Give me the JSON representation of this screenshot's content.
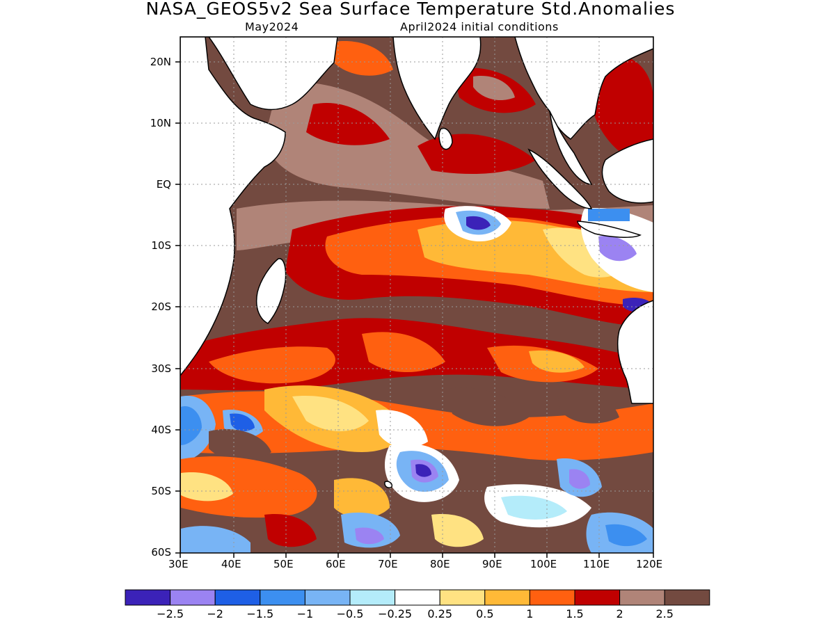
{
  "title": "NASA_GEOS5v2 Sea Surface Temperature Std.Anomalies",
  "subtitle_left": "May2024",
  "subtitle_right": "April2024 initial conditions",
  "map": {
    "lon_range": [
      30,
      120
    ],
    "lat_range": [
      -60,
      24
    ],
    "lon_ticks": [
      "30E",
      "40E",
      "50E",
      "60E",
      "70E",
      "80E",
      "90E",
      "100E",
      "110E",
      "120E"
    ],
    "lat_ticks": [
      "20N",
      "10N",
      "EQ",
      "10S",
      "20S",
      "30S",
      "40S",
      "50S",
      "60S"
    ],
    "grid": "dotted",
    "land_color": "#ffffff",
    "coastline_color": "#000000"
  },
  "colorbar": {
    "colors": [
      "#3b22b8",
      "#9b83f2",
      "#1e5fe6",
      "#3c8ff0",
      "#78b4f5",
      "#b4ecfa",
      "#ffffff",
      "#ffe282",
      "#ffb937",
      "#ff6010",
      "#c00000",
      "#b08478",
      "#734a40"
    ],
    "labels": [
      "−2.5",
      "−2",
      "−1.5",
      "−1",
      "−0.5",
      "−0.25",
      "0.25",
      "0.5",
      "1",
      "1.5",
      "2",
      "2.5"
    ]
  }
}
